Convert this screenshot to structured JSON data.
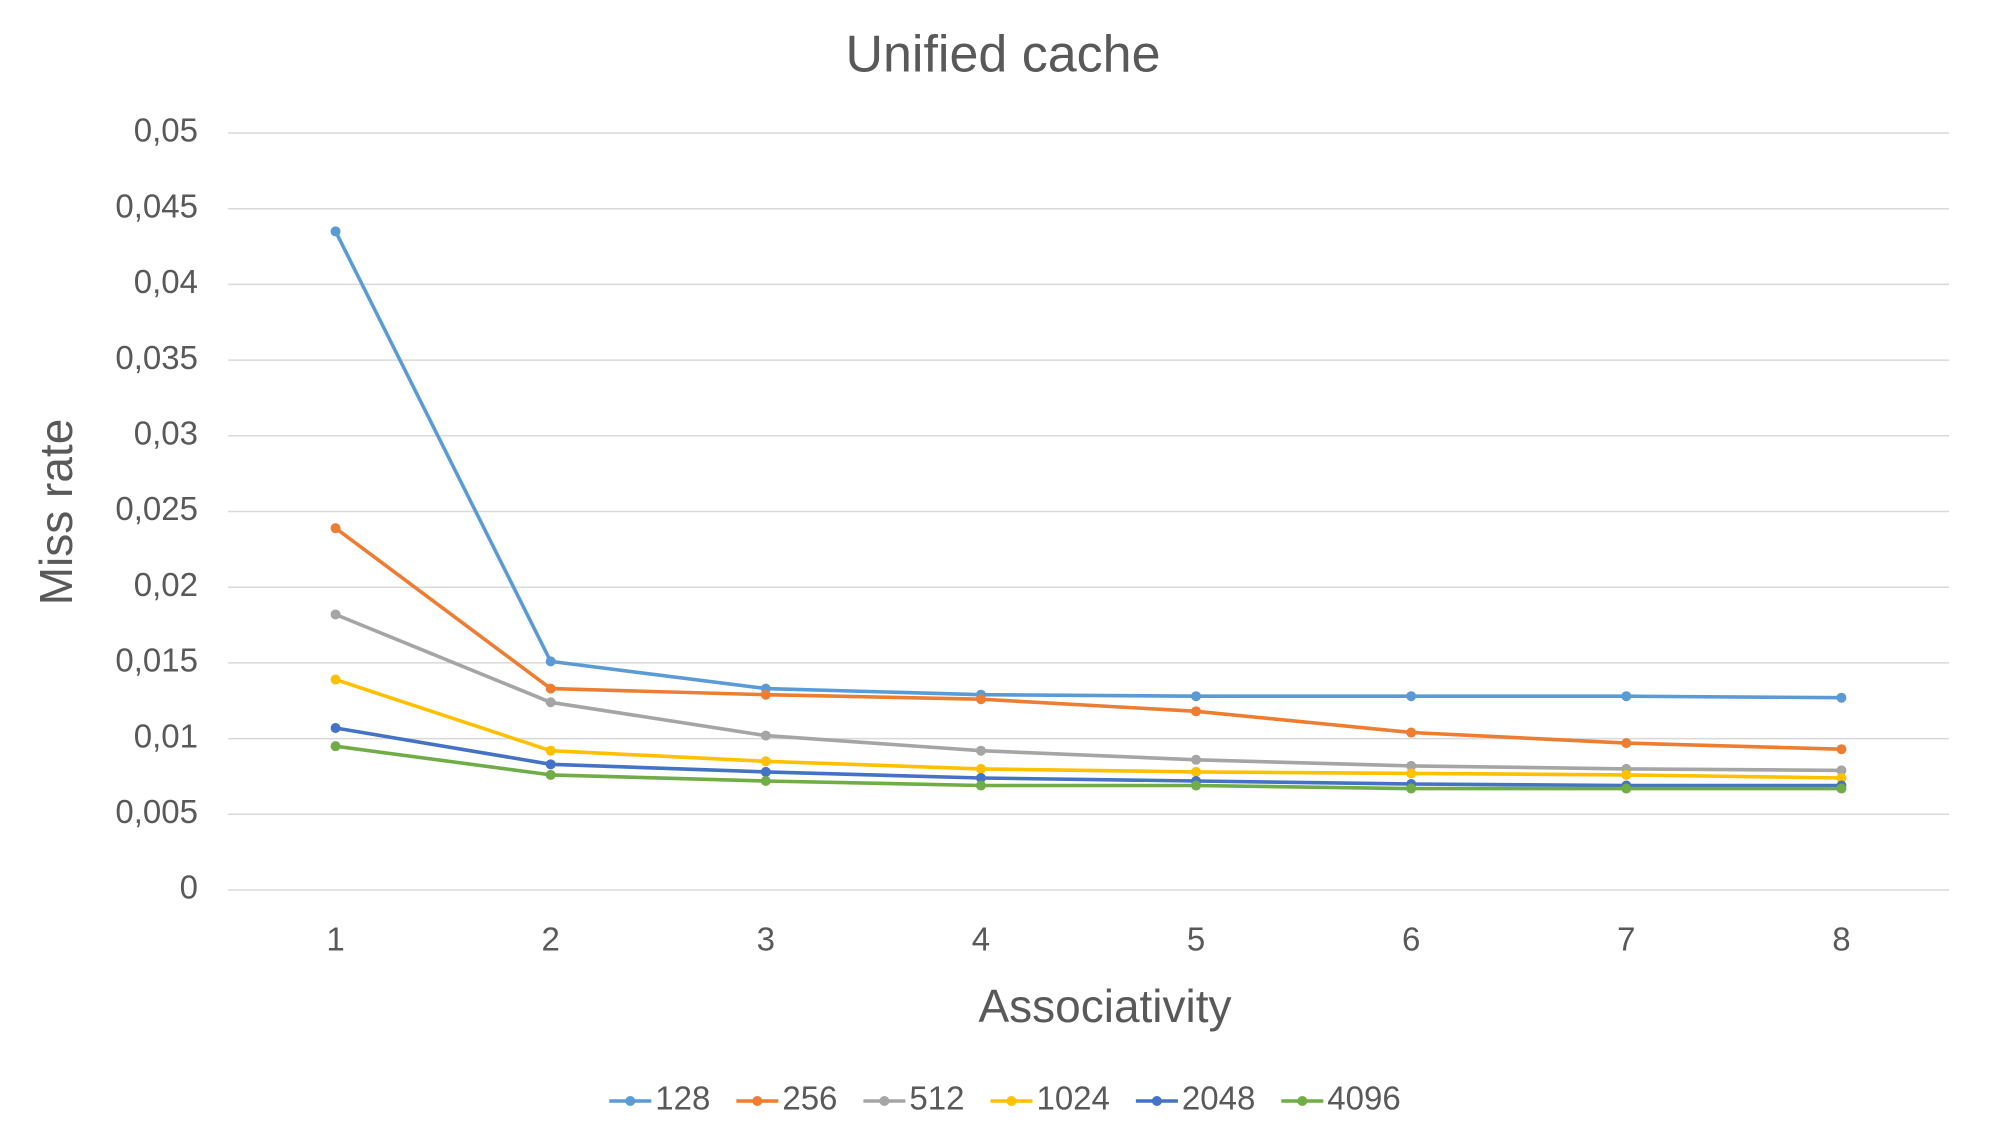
{
  "chart_data": {
    "type": "line",
    "title": "Unified cache",
    "x_label": "Associativity",
    "y_label": "Miss rate",
    "categories": [
      "1",
      "2",
      "3",
      "4",
      "5",
      "6",
      "7",
      "8"
    ],
    "series": [
      {
        "name": "128",
        "color": "#5b9bd5",
        "values": [
          0.0435,
          0.0151,
          0.0133,
          0.0129,
          0.0128,
          0.0128,
          0.0128,
          0.0127
        ]
      },
      {
        "name": "256",
        "color": "#ed7d31",
        "values": [
          0.0239,
          0.0133,
          0.0129,
          0.0126,
          0.0118,
          0.0104,
          0.0097,
          0.0093
        ]
      },
      {
        "name": "512",
        "color": "#a5a5a5",
        "values": [
          0.0182,
          0.0124,
          0.0102,
          0.0092,
          0.0086,
          0.0082,
          0.008,
          0.0079
        ]
      },
      {
        "name": "1024",
        "color": "#ffc000",
        "values": [
          0.0139,
          0.0092,
          0.0085,
          0.008,
          0.0078,
          0.0077,
          0.0076,
          0.0074
        ]
      },
      {
        "name": "2048",
        "color": "#4472c4",
        "values": [
          0.0107,
          0.0083,
          0.0078,
          0.0074,
          0.0072,
          0.007,
          0.0069,
          0.0069
        ]
      },
      {
        "name": "4096",
        "color": "#70ad47",
        "values": [
          0.0095,
          0.0076,
          0.0072,
          0.0069,
          0.0069,
          0.0067,
          0.0067,
          0.0067
        ]
      }
    ],
    "ylim": [
      0,
      0.05
    ],
    "yticks": [
      0,
      {
        "value": 0.005,
        "label": "0,005"
      },
      {
        "value": 0.01,
        "label": "0,01"
      },
      {
        "value": 0.015,
        "label": "0,015"
      },
      {
        "value": 0.02,
        "label": "0,02"
      },
      {
        "value": 0.025,
        "label": "0,025"
      },
      {
        "value": 0.03,
        "label": "0,03"
      },
      {
        "value": 0.035,
        "label": "0,035"
      },
      {
        "value": 0.04,
        "label": "0,04"
      },
      {
        "value": 0.045,
        "label": "0,045"
      },
      {
        "value": 0.05,
        "label": "0,05"
      }
    ],
    "grid": true,
    "legend": "bottom"
  }
}
